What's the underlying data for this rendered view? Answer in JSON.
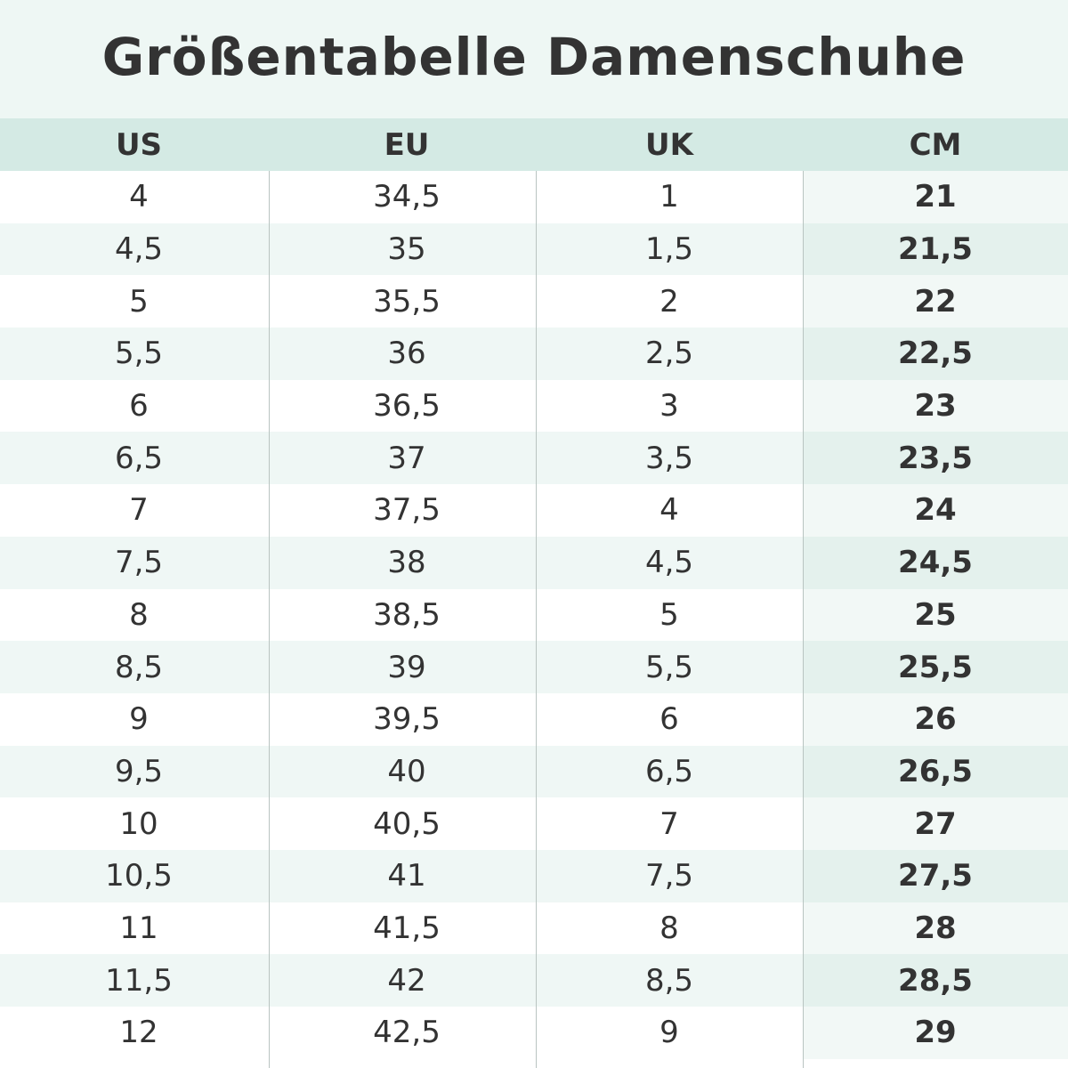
{
  "title": "Größentabelle Damenschuhe",
  "colors": {
    "title_background": "#eef7f4",
    "header_background": "#d4eae4",
    "alt_row_background": "#eff7f5",
    "text": "#333333"
  },
  "headers": [
    "US",
    "EU",
    "UK",
    "CM"
  ],
  "rows": [
    [
      "4",
      "34,5",
      "1",
      "21"
    ],
    [
      "4,5",
      "35",
      "1,5",
      "21,5"
    ],
    [
      "5",
      "35,5",
      "2",
      "22"
    ],
    [
      "5,5",
      "36",
      "2,5",
      "22,5"
    ],
    [
      "6",
      "36,5",
      "3",
      "23"
    ],
    [
      "6,5",
      "37",
      "3,5",
      "23,5"
    ],
    [
      "7",
      "37,5",
      "4",
      "24"
    ],
    [
      "7,5",
      "38",
      "4,5",
      "24,5"
    ],
    [
      "8",
      "38,5",
      "5",
      "25"
    ],
    [
      "8,5",
      "39",
      "5,5",
      "25,5"
    ],
    [
      "9",
      "39,5",
      "6",
      "26"
    ],
    [
      "9,5",
      "40",
      "6,5",
      "26,5"
    ],
    [
      "10",
      "40,5",
      "7",
      "27"
    ],
    [
      "10,5",
      "41",
      "7,5",
      "27,5"
    ],
    [
      "11",
      "41,5",
      "8",
      "28"
    ],
    [
      "11,5",
      "42",
      "8,5",
      "28,5"
    ],
    [
      "12",
      "42,5",
      "9",
      "29"
    ]
  ]
}
